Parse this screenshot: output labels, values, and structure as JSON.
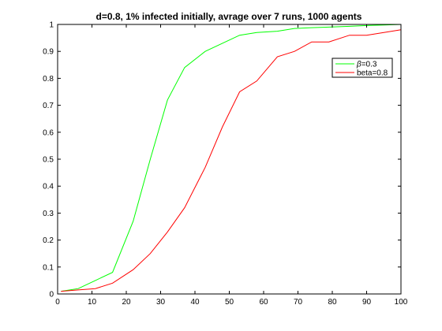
{
  "chart_data": {
    "type": "line",
    "title": "d=0.8, 1% infected initially, avrage over 7 runs, 1000 agents",
    "xlabel": "",
    "ylabel": "",
    "xlim": [
      0,
      100
    ],
    "ylim": [
      0,
      1
    ],
    "xticks": [
      "0",
      "10",
      "20",
      "30",
      "40",
      "50",
      "60",
      "70",
      "80",
      "90",
      "100"
    ],
    "yticks": [
      "0",
      "0.1",
      "0.2",
      "0.3",
      "0.4",
      "0.5",
      "0.6",
      "0.7",
      "0.8",
      "0.9",
      "1"
    ],
    "grid": false,
    "legend_position": "top-right",
    "series": [
      {
        "name": "β=0.3",
        "legend_label": {
          "prefix": "β",
          "suffix": "=0.3"
        },
        "color": "#00ff00",
        "x": [
          1,
          6,
          11,
          16,
          22,
          27,
          32,
          37,
          43,
          48,
          53,
          58,
          64,
          69,
          74,
          79,
          85,
          90,
          95,
          100
        ],
        "y": [
          0.01,
          0.02,
          0.05,
          0.08,
          0.27,
          0.5,
          0.72,
          0.84,
          0.9,
          0.93,
          0.96,
          0.97,
          0.975,
          0.985,
          0.988,
          0.99,
          0.993,
          0.996,
          0.998,
          1.0
        ]
      },
      {
        "name": "beta=0.8",
        "color": "#ff0000",
        "x": [
          1,
          6,
          11,
          16,
          22,
          27,
          32,
          37,
          43,
          48,
          53,
          58,
          64,
          69,
          74,
          79,
          85,
          90,
          95,
          100
        ],
        "y": [
          0.01,
          0.015,
          0.02,
          0.04,
          0.09,
          0.15,
          0.23,
          0.32,
          0.47,
          0.62,
          0.75,
          0.79,
          0.88,
          0.9,
          0.935,
          0.935,
          0.96,
          0.96,
          0.97,
          0.98
        ]
      }
    ]
  }
}
